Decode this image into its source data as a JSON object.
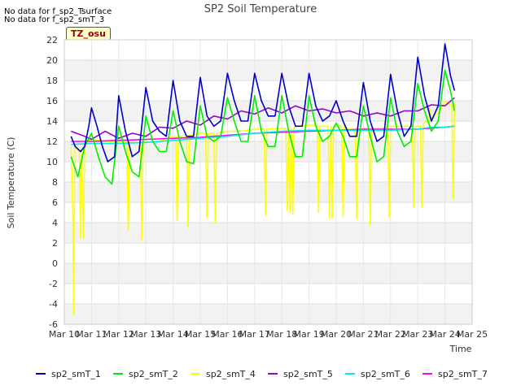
{
  "notes": [
    "No data for f_sp2_Tsurface",
    "No data for f_sp2_smT_3"
  ],
  "tz_label": "TZ_osu",
  "chart_data": {
    "type": "line",
    "title": "SP2 Soil Temperature",
    "xlabel": "Time",
    "ylabel": "Soil Temperature (C)",
    "x_ticks": [
      "Mar 10",
      "Mar 11",
      "Mar 12",
      "Mar 13",
      "Mar 14",
      "Mar 15",
      "Mar 16",
      "Mar 17",
      "Mar 18",
      "Mar 19",
      "Mar 20",
      "Mar 21",
      "Mar 22",
      "Mar 23",
      "Mar 24",
      "Mar 25"
    ],
    "xlim": [
      0,
      15
    ],
    "ylim": [
      -6,
      22
    ],
    "y_ticks": [
      -6,
      -4,
      -2,
      0,
      2,
      4,
      6,
      8,
      10,
      12,
      14,
      16,
      18,
      20,
      22
    ],
    "grid": true,
    "legend_position": "bottom",
    "series": [
      {
        "name": "sp2_smT_1",
        "color": "#0000cc",
        "x": [
          0.25,
          0.4,
          0.6,
          0.75,
          0.9,
          1.0,
          1.2,
          1.4,
          1.6,
          1.85,
          2.0,
          2.25,
          2.5,
          2.75,
          3.0,
          3.25,
          3.5,
          3.75,
          4.0,
          4.25,
          4.5,
          4.75,
          5.0,
          5.25,
          5.5,
          5.75,
          6.0,
          6.25,
          6.5,
          6.75,
          7.0,
          7.25,
          7.5,
          7.75,
          8.0,
          8.25,
          8.5,
          8.75,
          9.0,
          9.25,
          9.5,
          9.75,
          10.0,
          10.25,
          10.5,
          10.75,
          11.0,
          11.25,
          11.5,
          11.75,
          12.0,
          12.25,
          12.5,
          12.75,
          13.0,
          13.25,
          13.5,
          13.75,
          14.0,
          14.2,
          14.35
        ],
        "y": [
          12.5,
          11.5,
          11.0,
          11.5,
          13.5,
          15.3,
          13.5,
          11.5,
          10.0,
          10.5,
          16.5,
          13.0,
          10.5,
          11.0,
          17.3,
          14.0,
          13.0,
          12.5,
          18.0,
          14.0,
          12.5,
          12.5,
          18.3,
          14.5,
          13.5,
          14.0,
          18.7,
          16.0,
          14.0,
          14.0,
          18.7,
          16.0,
          14.5,
          14.5,
          18.7,
          15.5,
          13.5,
          13.5,
          18.7,
          15.5,
          14.0,
          14.5,
          16.0,
          14.0,
          12.5,
          12.5,
          17.8,
          14.0,
          12.0,
          12.5,
          18.6,
          15.0,
          12.5,
          13.5,
          20.3,
          16.5,
          14.0,
          15.5,
          21.6,
          18.5,
          17.0
        ]
      },
      {
        "name": "sp2_smT_2",
        "color": "#00ee00",
        "x": [
          0.25,
          0.5,
          0.75,
          1.0,
          1.25,
          1.5,
          1.75,
          2.0,
          2.25,
          2.5,
          2.75,
          3.0,
          3.25,
          3.5,
          3.75,
          4.0,
          4.25,
          4.5,
          4.75,
          5.0,
          5.25,
          5.5,
          5.75,
          6.0,
          6.25,
          6.5,
          6.75,
          7.0,
          7.25,
          7.5,
          7.75,
          8.0,
          8.25,
          8.5,
          8.75,
          9.0,
          9.25,
          9.5,
          9.75,
          10.0,
          10.25,
          10.5,
          10.75,
          11.0,
          11.25,
          11.5,
          11.75,
          12.0,
          12.25,
          12.5,
          12.75,
          13.0,
          13.25,
          13.5,
          13.75,
          14.0,
          14.2,
          14.35
        ],
        "y": [
          10.5,
          8.5,
          11.5,
          12.8,
          10.5,
          8.5,
          7.8,
          13.5,
          11.0,
          9.0,
          8.5,
          14.5,
          12.0,
          11.0,
          11.0,
          15.0,
          12.0,
          10.0,
          9.8,
          15.5,
          12.5,
          12.0,
          12.5,
          16.3,
          14.0,
          12.0,
          12.0,
          16.5,
          13.0,
          11.5,
          11.5,
          16.5,
          13.0,
          10.5,
          10.5,
          16.5,
          13.5,
          12.0,
          12.5,
          13.8,
          12.5,
          10.5,
          10.5,
          15.5,
          12.5,
          10.0,
          10.5,
          16.3,
          13.0,
          11.5,
          12.0,
          17.7,
          15.0,
          13.0,
          14.0,
          19.0,
          17.0,
          15.0
        ]
      },
      {
        "name": "sp2_smT_4",
        "color": "#ffff00",
        "x": [
          0.25,
          0.32,
          0.35,
          0.38,
          0.55,
          0.6,
          0.63,
          0.7,
          0.75,
          0.8,
          1.0,
          1.5,
          2.3,
          2.35,
          2.4,
          2.8,
          2.85,
          2.9,
          3.5,
          4.0,
          4.1,
          4.15,
          4.2,
          4.5,
          4.55,
          4.6,
          5.0,
          5.2,
          5.25,
          5.3,
          5.5,
          5.55,
          5.6,
          6.0,
          6.5,
          7.0,
          7.35,
          7.4,
          7.45,
          8.0,
          8.15,
          8.2,
          8.25,
          8.3,
          8.35,
          8.4,
          8.45,
          8.5,
          9.0,
          9.3,
          9.35,
          9.4,
          9.7,
          9.75,
          9.8,
          9.85,
          9.9,
          10.2,
          10.25,
          10.3,
          10.5,
          10.7,
          10.75,
          10.8,
          11.2,
          11.25,
          11.3,
          11.5,
          11.9,
          11.95,
          12.0,
          12.5,
          12.8,
          12.85,
          12.9,
          13.1,
          13.15,
          13.2,
          13.4,
          13.45,
          13.5,
          13.8,
          14.0,
          14.25,
          14.3,
          14.35
        ],
        "y": [
          11.5,
          4.0,
          -5.0,
          11.5,
          11.0,
          2.5,
          11.0,
          2.5,
          11.5,
          12.0,
          12.2,
          12.0,
          12.0,
          3.2,
          12.0,
          12.2,
          2.3,
          12.0,
          12.0,
          12.5,
          12.5,
          4.2,
          12.5,
          12.5,
          3.6,
          12.6,
          12.8,
          12.8,
          4.5,
          12.8,
          12.8,
          4.0,
          12.8,
          13.0,
          13.0,
          13.2,
          13.2,
          4.7,
          13.2,
          13.3,
          13.3,
          5.2,
          13.3,
          5.0,
          13.3,
          4.8,
          13.3,
          13.5,
          13.6,
          13.6,
          5.0,
          13.5,
          13.5,
          4.4,
          13.5,
          4.4,
          13.5,
          13.5,
          4.6,
          13.5,
          13.2,
          13.2,
          4.4,
          13.2,
          13.3,
          3.8,
          13.4,
          13.2,
          13.4,
          4.5,
          13.5,
          13.5,
          13.5,
          5.5,
          13.5,
          13.5,
          5.5,
          13.8,
          14.0,
          15.2,
          14.2,
          15.0,
          16.0,
          15.5,
          6.3,
          15.8
        ]
      },
      {
        "name": "sp2_smT_5",
        "color": "#9900cc",
        "x": [
          0.25,
          0.75,
          1.0,
          1.5,
          2.0,
          2.5,
          3.0,
          3.5,
          4.0,
          4.5,
          5.0,
          5.5,
          6.0,
          6.5,
          7.0,
          7.5,
          8.0,
          8.5,
          9.0,
          9.5,
          10.0,
          10.5,
          11.0,
          11.5,
          12.0,
          12.5,
          13.0,
          13.5,
          14.0,
          14.35
        ],
        "y": [
          13.0,
          12.5,
          12.2,
          13.0,
          12.3,
          12.8,
          12.5,
          13.4,
          13.3,
          14.0,
          13.6,
          14.5,
          14.2,
          15.0,
          14.7,
          15.3,
          14.8,
          15.5,
          15.0,
          15.2,
          14.8,
          15.0,
          14.5,
          14.8,
          14.5,
          15.0,
          15.0,
          15.6,
          15.5,
          16.3
        ]
      },
      {
        "name": "sp2_smT_6",
        "color": "#00eeee",
        "x": [
          0.25,
          1.0,
          2.0,
          3.0,
          4.0,
          5.0,
          6.0,
          7.0,
          8.0,
          9.0,
          10.0,
          11.0,
          12.0,
          13.0,
          13.5,
          14.0,
          14.35
        ],
        "y": [
          11.7,
          11.8,
          11.8,
          11.9,
          12.1,
          12.3,
          12.5,
          12.8,
          13.0,
          13.1,
          13.1,
          13.1,
          13.1,
          13.2,
          13.4,
          13.4,
          13.5
        ]
      },
      {
        "name": "sp2_smT_7",
        "color": "#ff00ff",
        "x": [
          0.25,
          1.0,
          2.0,
          3.0,
          4.0,
          5.0,
          6.0,
          7.0,
          8.0,
          9.0,
          10.0,
          11.0,
          12.0,
          13.0,
          14.0,
          14.35
        ],
        "y": [
          12.0,
          12.0,
          12.1,
          12.2,
          12.3,
          12.4,
          12.6,
          12.8,
          12.9,
          13.0,
          13.1,
          13.2,
          13.2,
          13.2,
          13.4,
          13.5
        ]
      }
    ]
  }
}
